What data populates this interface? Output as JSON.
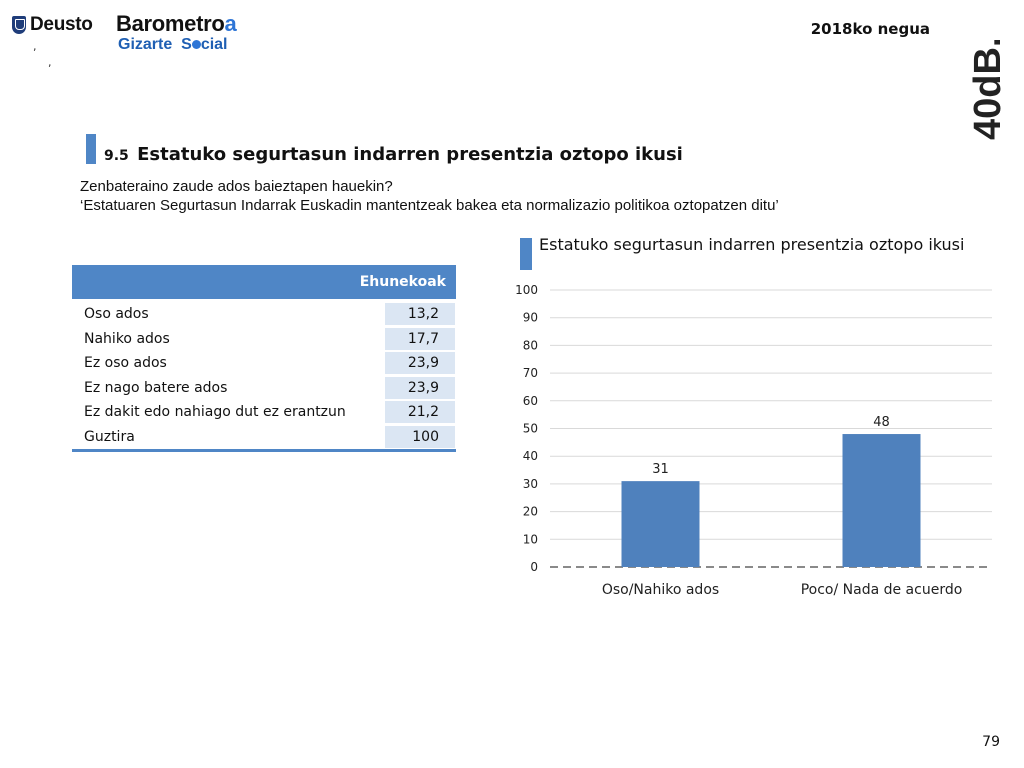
{
  "header": {
    "deusto_label": "Deusto",
    "barometro_main": "Barometro",
    "barometro_accent": "a",
    "gizarte_part1": "Gizarte",
    "gizarte_part2_a": "S",
    "gizarte_part2_b": "cial",
    "tick_mark": ",",
    "season": "2018ko negua",
    "brand_mark": "40dB."
  },
  "section": {
    "number": "9.5",
    "title": "Estatuko segurtasun indarren presentzia oztopo ikusi",
    "question_line1": "Zenbateraino zaude ados baieztapen hauekin?",
    "question_line2": "‘Estatuaren Segurtasun Indarrak Euskadin mantentzeak bakea eta normalizazio politikoa oztopatzen ditu’"
  },
  "table": {
    "header": "Ehunekoak",
    "rows": [
      {
        "label": "Oso ados",
        "value": "13,2"
      },
      {
        "label": "Nahiko ados",
        "value": "17,7"
      },
      {
        "label": "Ez oso ados",
        "value": "23,9"
      },
      {
        "label": "Ez nago batere ados",
        "value": "23,9"
      },
      {
        "label": "Ez dakit edo nahiago dut ez erantzun",
        "value": "21,2"
      },
      {
        "label": "Guztira",
        "value": "100"
      }
    ]
  },
  "chart_data": {
    "type": "bar",
    "title": "Estatuko segurtasun indarren presentzia oztopo ikusi",
    "categories": [
      "Oso/Nahiko ados",
      "Poco/ Nada de acuerdo"
    ],
    "values": [
      31,
      48
    ],
    "ylim": [
      0,
      100
    ],
    "yticks": [
      0,
      10,
      20,
      30,
      40,
      50,
      60,
      70,
      80,
      90,
      100
    ],
    "grid": true,
    "legend": "none",
    "bar_color": "#4f81bd",
    "gridline_color": "#d9d9d9"
  },
  "footer": {
    "page_number": "79"
  },
  "colors": {
    "accent": "#4f86c6",
    "table_value_bg": "#dbe6f3"
  }
}
